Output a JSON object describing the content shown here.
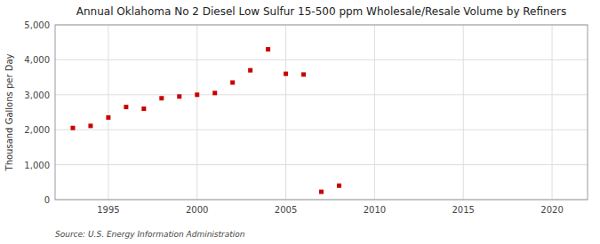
{
  "chart_data": {
    "type": "scatter",
    "title": "Annual Oklahoma No 2 Diesel Low Sulfur 15-500 ppm Wholesale/Resale Volume by Refiners",
    "y_label": "Thousand Gallons per Day",
    "annotation": "Source: U.S. Energy Information Administration",
    "x": [
      1993,
      1994,
      1995,
      1996,
      1997,
      1998,
      1999,
      2000,
      2001,
      2002,
      2003,
      2004,
      2005,
      2006,
      2007,
      2008
    ],
    "values": [
      2050,
      2110,
      2350,
      2650,
      2600,
      2900,
      2950,
      3000,
      3050,
      3350,
      3700,
      4300,
      3600,
      3580,
      225,
      400
    ],
    "color": "#cc0000",
    "marker": "square",
    "xlim": [
      1992,
      2022
    ],
    "ylim": [
      0,
      5000
    ],
    "xticks": [
      1995,
      2000,
      2005,
      2010,
      2015,
      2020
    ],
    "yticks": [
      0,
      {
        "value": 1000,
        "label": "1,000"
      },
      {
        "value": 2000,
        "label": "2,000"
      },
      {
        "value": 3000,
        "label": "3,000"
      },
      {
        "value": 4000,
        "label": "4,000"
      },
      {
        "value": 5000,
        "label": "5,000"
      }
    ],
    "grid": true
  }
}
